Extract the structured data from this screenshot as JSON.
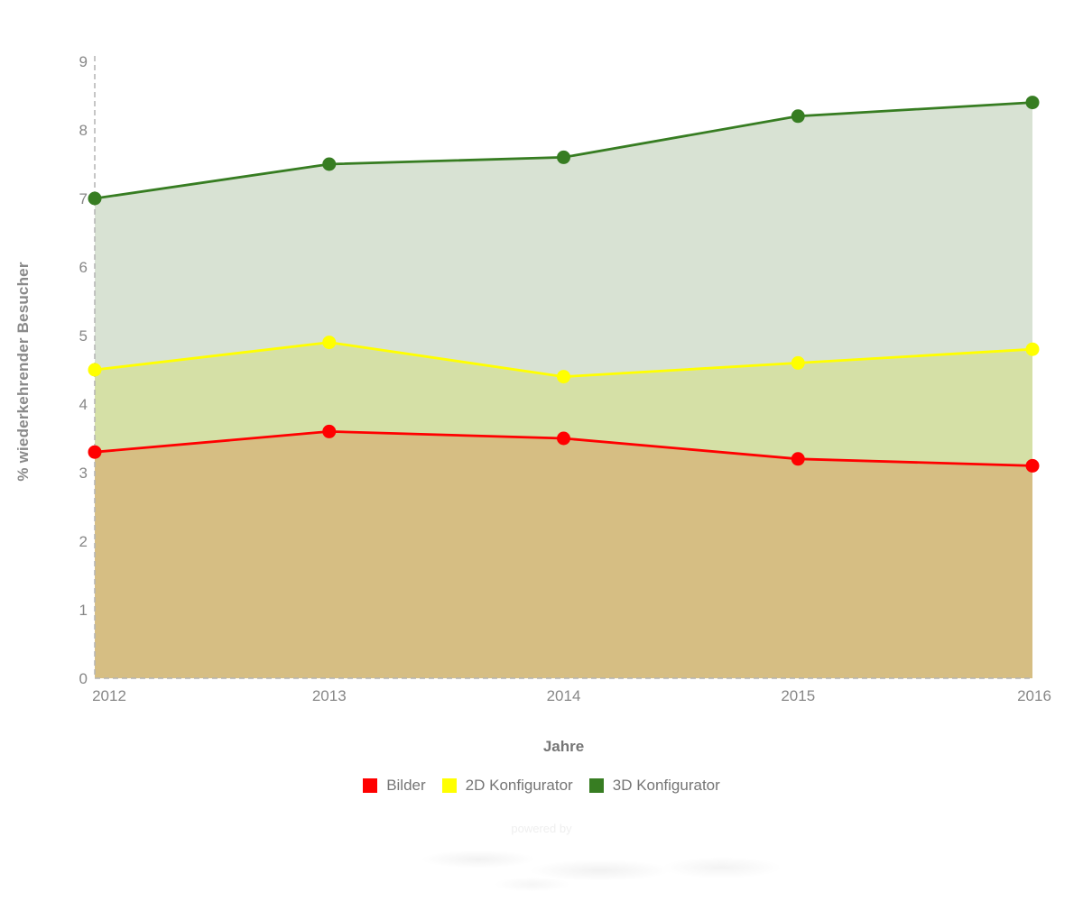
{
  "chart_data": {
    "type": "area",
    "title": "",
    "xlabel": "Jahre",
    "ylabel": "% wiederkehrender Besucher",
    "categories": [
      "2012",
      "2013",
      "2014",
      "2015",
      "2016"
    ],
    "series": [
      {
        "name": "Bilder",
        "line_color": "#ff0000",
        "area_color": "#d6be83",
        "values": [
          3.3,
          3.6,
          3.5,
          3.2,
          3.1
        ]
      },
      {
        "name": "2D Konfigurator",
        "line_color": "#ffff00",
        "area_color": "#d5e0a6",
        "values": [
          4.5,
          4.9,
          4.4,
          4.6,
          4.8
        ]
      },
      {
        "name": "3D Konfigurator",
        "line_color": "#377d22",
        "area_color": "#d8e2d3",
        "values": [
          7.0,
          7.5,
          7.6,
          8.2,
          8.4
        ]
      }
    ],
    "ylim": [
      0,
      9
    ],
    "yticks": [
      0,
      1,
      2,
      3,
      4,
      5,
      6,
      7,
      8,
      9
    ],
    "grid": false,
    "axis_style": "dashed",
    "legend_position": "bottom"
  },
  "axis": {
    "line_color": "#b3b3b3",
    "tick_text_color": "#878787"
  },
  "watermark": {
    "powered_by": "powered by"
  }
}
